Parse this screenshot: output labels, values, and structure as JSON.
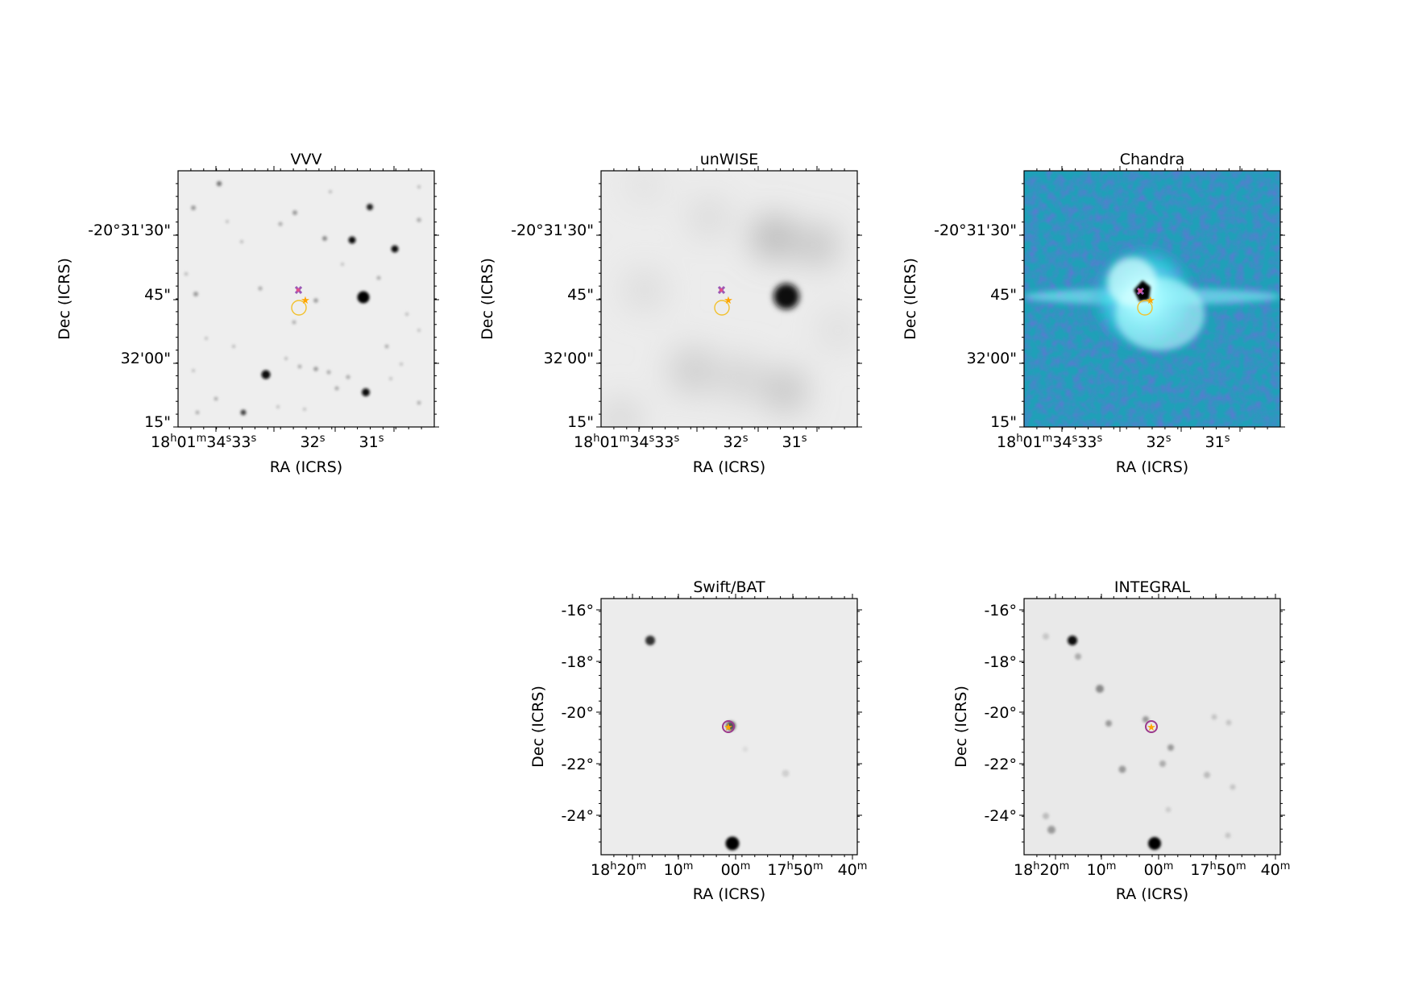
{
  "panels": [
    {
      "id": "vvv",
      "title": "VVV",
      "xlabel": "RA (ICRS)",
      "ylabel": "Dec (ICRS)",
      "y_ticks": [
        "-20°31'30\"",
        "45\"",
        "32'00\"",
        "15\""
      ],
      "background": "grayscale",
      "sources": [
        {
          "ra": 31.0,
          "dec_arcsec": 45,
          "brightness": 1.0,
          "size": 1.0
        },
        {
          "ra": 31.45,
          "dec_arcsec": 34,
          "brightness": 0.9,
          "size": 0.7
        },
        {
          "ra": 30.8,
          "dec_arcsec": 37,
          "brightness": 0.9,
          "size": 0.6
        },
        {
          "ra": 31.3,
          "dec_arcsec": 27,
          "brightness": 0.7,
          "size": 0.5
        },
        {
          "ra": 32.9,
          "dec_arcsec": 2,
          "brightness": 0.95,
          "size": 0.8
        },
        {
          "ra": 31.1,
          "dec_arcsec": 7,
          "brightness": 0.9,
          "size": 0.7
        },
        {
          "ra": 33.5,
          "dec_arcsec": 17,
          "brightness": 0.6,
          "size": 0.5
        },
        {
          "ra": 33.8,
          "dec_arcsec": 22,
          "brightness": 0.5,
          "size": 0.5
        }
      ]
    },
    {
      "id": "unwise",
      "title": "unWISE",
      "xlabel": "RA (ICRS)",
      "ylabel": "Dec (ICRS)",
      "y_ticks": [
        "-20°31'30\"",
        "45\"",
        "32'00\"",
        "15\""
      ],
      "background": "grayscale-blurred"
    },
    {
      "id": "chandra",
      "title": "Chandra",
      "xlabel": "RA (ICRS)",
      "ylabel": "Dec (ICRS)",
      "y_ticks": [
        "-20°31'30\"",
        "45\"",
        "32'00\"",
        "15\""
      ],
      "background": "cyan-blue",
      "colors": {
        "dark": "#1f2fa8",
        "mid": "#1fa0b8",
        "bright": "#3fe8ff"
      }
    },
    {
      "id": "swift",
      "title": "Swift/BAT",
      "xlabel": "RA (ICRS)",
      "ylabel": "Dec (ICRS)",
      "y_ticks": [
        "-16°",
        "-18°",
        "-20°",
        "-22°",
        "-24°"
      ],
      "background": "grayscale"
    },
    {
      "id": "integral",
      "title": "INTEGRAL",
      "xlabel": "RA (ICRS)",
      "ylabel": "Dec (ICRS)",
      "y_ticks": [
        "-16°",
        "-18°",
        "-20°",
        "-22°",
        "-24°"
      ],
      "background": "grayscale"
    }
  ],
  "markers": {
    "star_color": "#ffa500",
    "circle_color": "#f2c12e",
    "cross_color": "#9b59b6",
    "dot_color": "#e0508c",
    "bat_circle_color": "#9b3a8c"
  }
}
